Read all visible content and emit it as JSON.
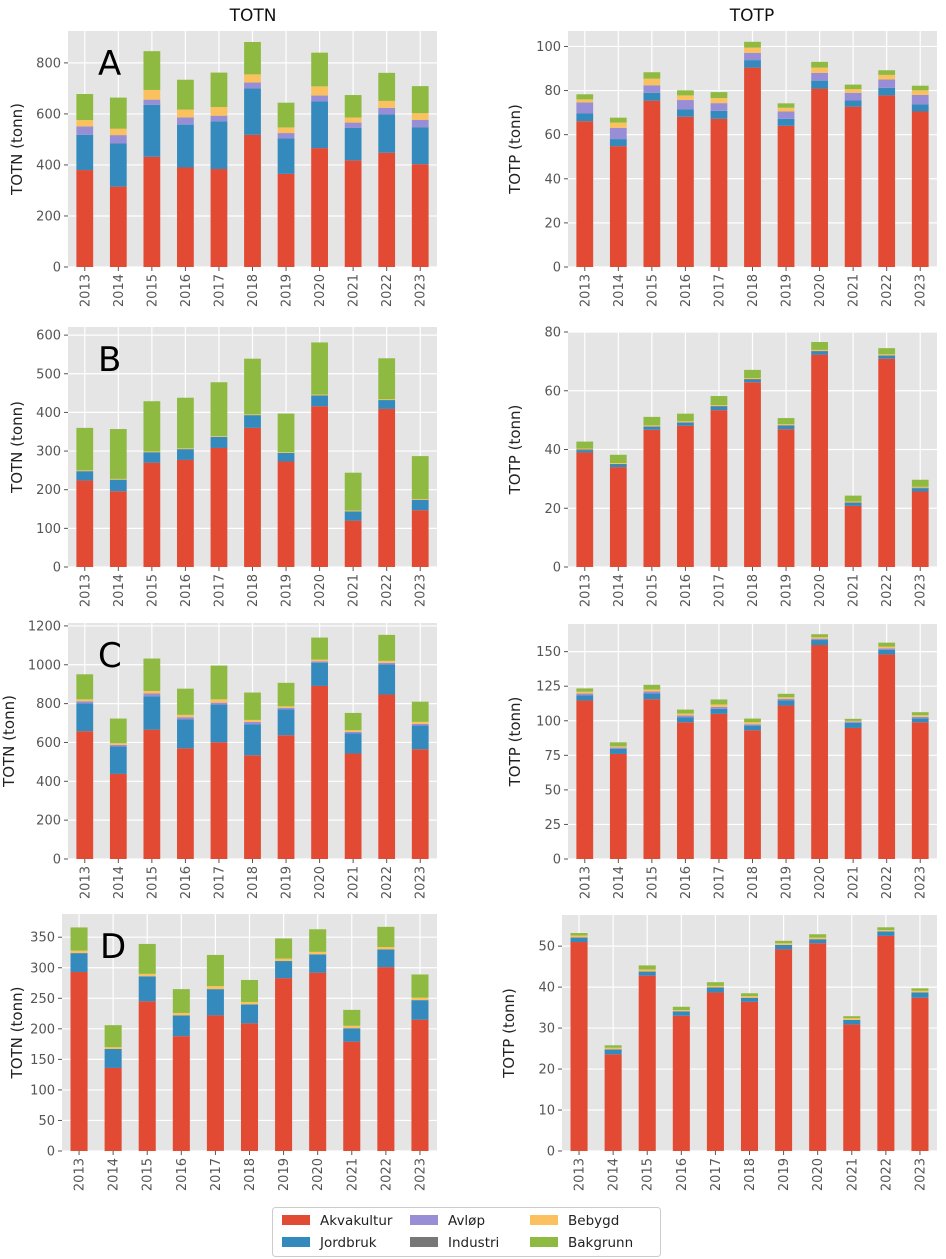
{
  "column_titles": [
    "TOTN",
    "TOTP"
  ],
  "colors": {
    "Akvakultur": "#E24A33",
    "Jordbruk": "#348ABD",
    "Avløp": "#988ED5",
    "Industri": "#777777",
    "Bebygd": "#FBC15E",
    "Bakgrunn": "#8EBA42",
    "panel_background": "#E5E5E5",
    "grid": "#FFFFFF"
  },
  "legend": {
    "placement": "bottom-center",
    "entries": [
      "Akvakultur",
      "Jordbruk",
      "Avløp",
      "Industri",
      "Bebygd",
      "Bakgrunn"
    ]
  },
  "chart_data": [
    {
      "type": "bar",
      "stacked": true,
      "panel_label": "A",
      "title": "TOTN",
      "ylabel": "TOTN (tonn)",
      "ylim": [
        0,
        925
      ],
      "yticks": [
        0,
        200,
        400,
        600,
        800
      ],
      "grid": true,
      "categories": [
        "2013",
        "2014",
        "2015",
        "2016",
        "2017",
        "2018",
        "2019",
        "2020",
        "2021",
        "2022",
        "2023"
      ],
      "series": [
        {
          "name": "Akvakultur",
          "values": [
            380,
            315,
            432,
            390,
            384,
            518,
            365,
            466,
            418,
            448,
            403
          ]
        },
        {
          "name": "Jordbruk",
          "values": [
            138,
            169,
            204,
            168,
            187,
            182,
            139,
            183,
            127,
            150,
            145
          ]
        },
        {
          "name": "Avløp",
          "values": [
            33,
            33,
            20,
            28,
            22,
            23,
            21,
            23,
            21,
            26,
            29
          ]
        },
        {
          "name": "Industri",
          "values": [
            0,
            0,
            0,
            0,
            0,
            0,
            0,
            0,
            0,
            0,
            0
          ]
        },
        {
          "name": "Bebygd",
          "values": [
            25,
            25,
            38,
            31,
            34,
            32,
            22,
            36,
            20,
            27,
            26
          ]
        },
        {
          "name": "Bakgrunn",
          "values": [
            102,
            122,
            152,
            117,
            135,
            127,
            97,
            132,
            88,
            110,
            106
          ]
        }
      ]
    },
    {
      "type": "bar",
      "stacked": true,
      "panel_label": "",
      "title": "TOTP",
      "ylabel": "TOTP (tonn)",
      "ylim": [
        0,
        107
      ],
      "yticks": [
        0,
        20,
        40,
        60,
        80,
        100
      ],
      "grid": true,
      "categories": [
        "2013",
        "2014",
        "2015",
        "2016",
        "2017",
        "2018",
        "2019",
        "2020",
        "2021",
        "2022",
        "2023"
      ],
      "series": [
        {
          "name": "Akvakultur",
          "values": [
            66.1,
            54.8,
            75.4,
            68.1,
            67.2,
            90.4,
            64.0,
            80.9,
            72.7,
            77.8,
            70.5
          ]
        },
        {
          "name": "Jordbruk",
          "values": [
            3.5,
            3.2,
            3.6,
            3.3,
            3.6,
            3.4,
            3.2,
            3.6,
            2.8,
            3.4,
            3.2
          ]
        },
        {
          "name": "Avløp",
          "values": [
            5.0,
            5.1,
            3.4,
            4.3,
            3.5,
            3.3,
            3.3,
            3.5,
            3.5,
            3.8,
            4.3
          ]
        },
        {
          "name": "Industri",
          "values": [
            0,
            0,
            0,
            0,
            0,
            0,
            0,
            0,
            0,
            0,
            0
          ]
        },
        {
          "name": "Bebygd",
          "values": [
            1.4,
            2.4,
            3.0,
            2.1,
            2.3,
            2.4,
            1.7,
            2.4,
            1.7,
            2.1,
            2.1
          ]
        },
        {
          "name": "Bakgrunn",
          "values": [
            2.3,
            2.2,
            2.9,
            2.3,
            2.7,
            2.6,
            2.0,
            2.6,
            2.0,
            2.1,
            2.1
          ]
        }
      ]
    },
    {
      "type": "bar",
      "stacked": true,
      "panel_label": "B",
      "title": "",
      "ylabel": "TOTN (tonn)",
      "ylim": [
        0,
        621
      ],
      "yticks": [
        0,
        100,
        200,
        300,
        400,
        500,
        600
      ],
      "grid": true,
      "categories": [
        "2013",
        "2014",
        "2015",
        "2016",
        "2017",
        "2018",
        "2019",
        "2020",
        "2021",
        "2022",
        "2023"
      ],
      "series": [
        {
          "name": "Akvakultur",
          "values": [
            224,
            196,
            270,
            277,
            308,
            360,
            273,
            416,
            120,
            409,
            147
          ]
        },
        {
          "name": "Jordbruk",
          "values": [
            24,
            30,
            27,
            28,
            29,
            33,
            22,
            28,
            24,
            23,
            27
          ]
        },
        {
          "name": "Avløp",
          "values": [
            0,
            0,
            0,
            0,
            0,
            0,
            0,
            0,
            0,
            0,
            0
          ]
        },
        {
          "name": "Industri",
          "values": [
            0,
            0,
            0,
            0,
            0,
            0,
            0,
            0,
            0,
            0,
            0
          ]
        },
        {
          "name": "Bebygd",
          "values": [
            2,
            2,
            2,
            2,
            2,
            2,
            2,
            2,
            2,
            2,
            2
          ]
        },
        {
          "name": "Bakgrunn",
          "values": [
            110,
            129,
            130,
            131,
            139,
            144,
            100,
            135,
            98,
            106,
            111
          ]
        }
      ]
    },
    {
      "type": "bar",
      "stacked": true,
      "panel_label": "",
      "title": "",
      "ylabel": "TOTP (tonn)",
      "ylim": [
        0,
        80
      ],
      "yticks": [
        0,
        20,
        40,
        60,
        80
      ],
      "grid": true,
      "categories": [
        "2013",
        "2014",
        "2015",
        "2016",
        "2017",
        "2018",
        "2019",
        "2020",
        "2021",
        "2022",
        "2023"
      ],
      "series": [
        {
          "name": "Akvakultur",
          "values": [
            39.0,
            34.0,
            46.7,
            48.1,
            53.4,
            62.9,
            46.9,
            72.3,
            20.8,
            70.9,
            25.7
          ]
        },
        {
          "name": "Jordbruk",
          "values": [
            0.8,
            0.9,
            1.0,
            1.0,
            1.2,
            0.9,
            1.2,
            1.1,
            1.0,
            1.0,
            1.1
          ]
        },
        {
          "name": "Avløp",
          "values": [
            0,
            0,
            0,
            0,
            0,
            0,
            0,
            0,
            0,
            0,
            0
          ]
        },
        {
          "name": "Industri",
          "values": [
            0.2,
            0.2,
            0.2,
            0.2,
            0.2,
            0.2,
            0.2,
            0.2,
            0.2,
            0.2,
            0.2
          ]
        },
        {
          "name": "Bebygd",
          "values": [
            0.3,
            0.3,
            0.3,
            0.3,
            0.3,
            0.3,
            0.3,
            0.3,
            0.3,
            0.3,
            0.3
          ]
        },
        {
          "name": "Bakgrunn",
          "values": [
            2.4,
            2.8,
            2.9,
            2.6,
            3.1,
            2.8,
            2.1,
            2.7,
            2.0,
            2.1,
            2.4
          ]
        }
      ]
    },
    {
      "type": "bar",
      "stacked": true,
      "panel_label": "C",
      "title": "",
      "ylabel": "TOTN (tonn)",
      "ylim": [
        0,
        1215
      ],
      "yticks": [
        0,
        200,
        400,
        600,
        800,
        1000,
        1200
      ],
      "grid": true,
      "categories": [
        "2013",
        "2014",
        "2015",
        "2016",
        "2017",
        "2018",
        "2019",
        "2020",
        "2021",
        "2022",
        "2023"
      ],
      "series": [
        {
          "name": "Akvakultur",
          "values": [
            658,
            438,
            666,
            570,
            601,
            534,
            637,
            891,
            543,
            847,
            565
          ]
        },
        {
          "name": "Jordbruk",
          "values": [
            144,
            141,
            172,
            148,
            194,
            160,
            134,
            120,
            103,
            154,
            122
          ]
        },
        {
          "name": "Avløp",
          "values": [
            10,
            8,
            14,
            12,
            10,
            12,
            7,
            7,
            8,
            9,
            8
          ]
        },
        {
          "name": "Industri",
          "values": [
            0,
            0,
            0,
            0,
            0,
            0,
            0,
            0,
            0,
            0,
            0
          ]
        },
        {
          "name": "Bebygd",
          "values": [
            10,
            9,
            13,
            12,
            17,
            10,
            8,
            9,
            9,
            10,
            11
          ]
        },
        {
          "name": "Bakgrunn",
          "values": [
            129,
            127,
            167,
            135,
            174,
            141,
            121,
            113,
            89,
            134,
            104
          ]
        }
      ]
    },
    {
      "type": "bar",
      "stacked": true,
      "panel_label": "",
      "title": "",
      "ylabel": "TOTP (tonn)",
      "ylim": [
        0,
        170
      ],
      "yticks": [
        0,
        25,
        50,
        75,
        100,
        125,
        150
      ],
      "grid": true,
      "categories": [
        "2013",
        "2014",
        "2015",
        "2016",
        "2017",
        "2018",
        "2019",
        "2020",
        "2021",
        "2022",
        "2023"
      ],
      "series": [
        {
          "name": "Akvakultur",
          "values": [
            114.7,
            76.0,
            115.6,
            98.9,
            105.0,
            93.1,
            111.0,
            154.8,
            94.8,
            148.0,
            98.9
          ]
        },
        {
          "name": "Jordbruk",
          "values": [
            3.6,
            3.6,
            4.1,
            3.7,
            3.6,
            3.4,
            3.7,
            3.6,
            3.7,
            3.2,
            2.9
          ]
        },
        {
          "name": "Avløp",
          "values": [
            1.4,
            1.0,
            1.5,
            1.2,
            1.4,
            1.0,
            1.2,
            1.0,
            0.9,
            1.2,
            1.0
          ]
        },
        {
          "name": "Industri",
          "values": [
            0,
            0,
            0,
            0,
            0,
            0,
            0,
            0,
            0,
            0,
            0
          ]
        },
        {
          "name": "Bebygd",
          "values": [
            1.3,
            0.9,
            1.4,
            1.4,
            1.8,
            1.4,
            1.1,
            1.0,
            0.5,
            1.2,
            1.2
          ]
        },
        {
          "name": "Bakgrunn",
          "values": [
            2.4,
            2.9,
            3.4,
            2.9,
            3.6,
            2.7,
            2.5,
            2.2,
            1.5,
            2.9,
            2.2
          ]
        }
      ]
    },
    {
      "type": "bar",
      "stacked": true,
      "panel_label": "D",
      "title": "",
      "ylabel": "TOTN (tonn)",
      "ylim": [
        0,
        388
      ],
      "yticks": [
        0,
        50,
        100,
        150,
        200,
        250,
        300,
        350
      ],
      "grid": true,
      "categories": [
        "2013",
        "2014",
        "2015",
        "2016",
        "2017",
        "2018",
        "2019",
        "2020",
        "2021",
        "2022",
        "2023"
      ],
      "series": [
        {
          "name": "Akvakultur",
          "values": [
            293,
            136,
            245,
            188,
            222,
            209,
            283,
            292,
            179,
            301,
            215
          ]
        },
        {
          "name": "Jordbruk",
          "values": [
            31,
            31,
            41,
            34,
            43,
            31,
            28,
            30,
            22,
            29,
            32
          ]
        },
        {
          "name": "Avløp",
          "values": [
            0,
            0,
            0,
            0,
            0,
            0,
            0,
            0,
            0,
            0,
            0
          ]
        },
        {
          "name": "Industri",
          "values": [
            0,
            0,
            0,
            0,
            0,
            0,
            0,
            0,
            0,
            0,
            0
          ]
        },
        {
          "name": "Bebygd",
          "values": [
            4,
            3,
            4,
            4,
            5,
            4,
            4,
            4,
            4,
            4,
            4
          ]
        },
        {
          "name": "Bakgrunn",
          "values": [
            38,
            36,
            49,
            39,
            51,
            36,
            33,
            37,
            26,
            33,
            38
          ]
        }
      ]
    },
    {
      "type": "bar",
      "stacked": true,
      "panel_label": "",
      "title": "",
      "ylabel": "TOTP (tonn)",
      "ylim": [
        0,
        57.6
      ],
      "yticks": [
        0,
        10,
        20,
        30,
        40,
        50
      ],
      "grid": true,
      "categories": [
        "2013",
        "2014",
        "2015",
        "2016",
        "2017",
        "2018",
        "2019",
        "2020",
        "2021",
        "2022",
        "2023"
      ],
      "series": [
        {
          "name": "Akvakultur",
          "values": [
            51.0,
            23.6,
            42.8,
            33.0,
            38.7,
            36.4,
            49.2,
            50.7,
            30.9,
            52.5,
            37.4
          ]
        },
        {
          "name": "Jordbruk",
          "values": [
            1.1,
            1.2,
            1.0,
            1.1,
            1.2,
            1.0,
            1.1,
            1.0,
            1.1,
            1.1,
            1.3
          ]
        },
        {
          "name": "Avløp",
          "values": [
            0,
            0,
            0,
            0,
            0,
            0,
            0,
            0,
            0,
            0,
            0
          ]
        },
        {
          "name": "Industri",
          "values": [
            0,
            0,
            0,
            0,
            0,
            0,
            0,
            0,
            0,
            0,
            0
          ]
        },
        {
          "name": "Bebygd",
          "values": [
            0.5,
            0.4,
            0.5,
            0.3,
            0.4,
            0.4,
            0.4,
            0.4,
            0.4,
            0.3,
            0.4
          ]
        },
        {
          "name": "Bakgrunn",
          "values": [
            0.6,
            0.6,
            1.0,
            0.8,
            0.9,
            0.7,
            0.6,
            0.8,
            0.5,
            0.7,
            0.6
          ]
        }
      ]
    }
  ]
}
